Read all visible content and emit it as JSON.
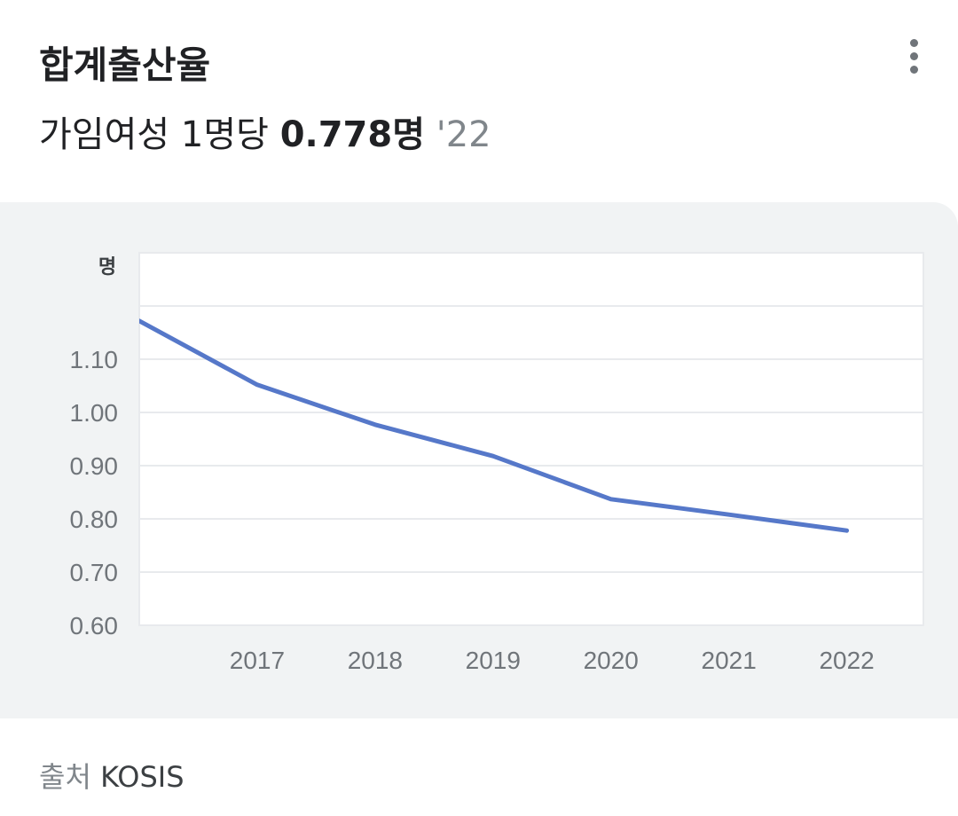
{
  "header": {
    "title": "합계출산율",
    "subtitle_prefix": "가임여성 1명당",
    "subtitle_value": "0.778명",
    "subtitle_year": "'22"
  },
  "menu": {
    "icon": "more-vert-icon"
  },
  "source": {
    "label": "출처",
    "name": "KOSIS"
  },
  "colors": {
    "line": "#5678c9",
    "grid": "#e8eaed",
    "plot_bg": "#ffffff",
    "panel_bg": "#f1f3f4",
    "tick_text": "#70757a"
  },
  "chart_data": {
    "type": "line",
    "unit_label": "명",
    "x": [
      "2016",
      "2017",
      "2018",
      "2019",
      "2020",
      "2021",
      "2022"
    ],
    "x_tick_labels": [
      "2017",
      "2018",
      "2019",
      "2020",
      "2021",
      "2022"
    ],
    "y_tick_labels": [
      "0.60",
      "0.70",
      "0.80",
      "0.90",
      "1.00",
      "1.10"
    ],
    "ylim": [
      0.6,
      1.3
    ],
    "xlim": [
      2016,
      2022.65
    ],
    "series": [
      {
        "values": [
          1.172,
          1.052,
          0.977,
          0.918,
          0.837,
          0.808,
          0.778
        ]
      }
    ],
    "grid": true,
    "legend": "none"
  }
}
